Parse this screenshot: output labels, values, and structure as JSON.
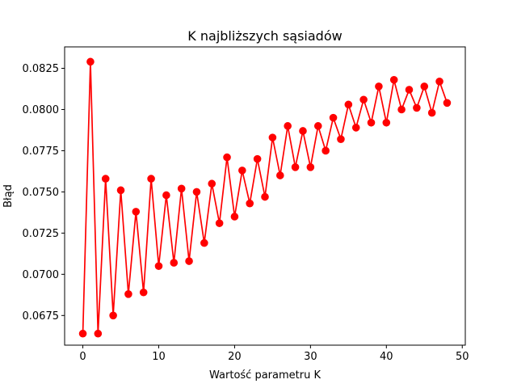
{
  "chart_data": {
    "type": "line",
    "title": "K najbliższych sąsiadów",
    "xlabel": "Wartość parametru K",
    "ylabel": "Błąd",
    "xlim": [
      -2.4,
      50.4
    ],
    "ylim": [
      0.0657,
      0.0838
    ],
    "xticks": [
      0,
      10,
      20,
      30,
      40,
      50
    ],
    "yticks": [
      0.0675,
      0.07,
      0.0725,
      0.075,
      0.0775,
      0.08,
      0.0825
    ],
    "ytick_labels": [
      "0.0675",
      "0.0700",
      "0.0725",
      "0.0750",
      "0.0775",
      "0.0800",
      "0.0825"
    ],
    "grid": false,
    "series": [
      {
        "color": "#ff0000",
        "marker": "circle",
        "x": [
          0,
          1,
          2,
          3,
          4,
          5,
          6,
          7,
          8,
          9,
          10,
          11,
          12,
          13,
          14,
          15,
          16,
          17,
          18,
          19,
          20,
          21,
          22,
          23,
          24,
          25,
          26,
          27,
          28,
          29,
          30,
          31,
          32,
          33,
          34,
          35,
          36,
          37,
          38,
          39,
          40,
          41,
          42,
          43,
          44,
          45,
          46,
          47,
          48
        ],
        "y": [
          0.0664,
          0.0829,
          0.0664,
          0.0758,
          0.0675,
          0.0751,
          0.0688,
          0.0738,
          0.0689,
          0.0758,
          0.0705,
          0.0748,
          0.0707,
          0.0752,
          0.0708,
          0.075,
          0.0719,
          0.0755,
          0.0731,
          0.0771,
          0.0735,
          0.0763,
          0.0743,
          0.077,
          0.0747,
          0.0783,
          0.076,
          0.079,
          0.0765,
          0.0787,
          0.0765,
          0.079,
          0.0775,
          0.0795,
          0.0782,
          0.0803,
          0.0789,
          0.0806,
          0.0792,
          0.0814,
          0.0792,
          0.0818,
          0.08,
          0.0812,
          0.0801,
          0.0814,
          0.0798,
          0.0817,
          0.0804
        ]
      }
    ]
  }
}
